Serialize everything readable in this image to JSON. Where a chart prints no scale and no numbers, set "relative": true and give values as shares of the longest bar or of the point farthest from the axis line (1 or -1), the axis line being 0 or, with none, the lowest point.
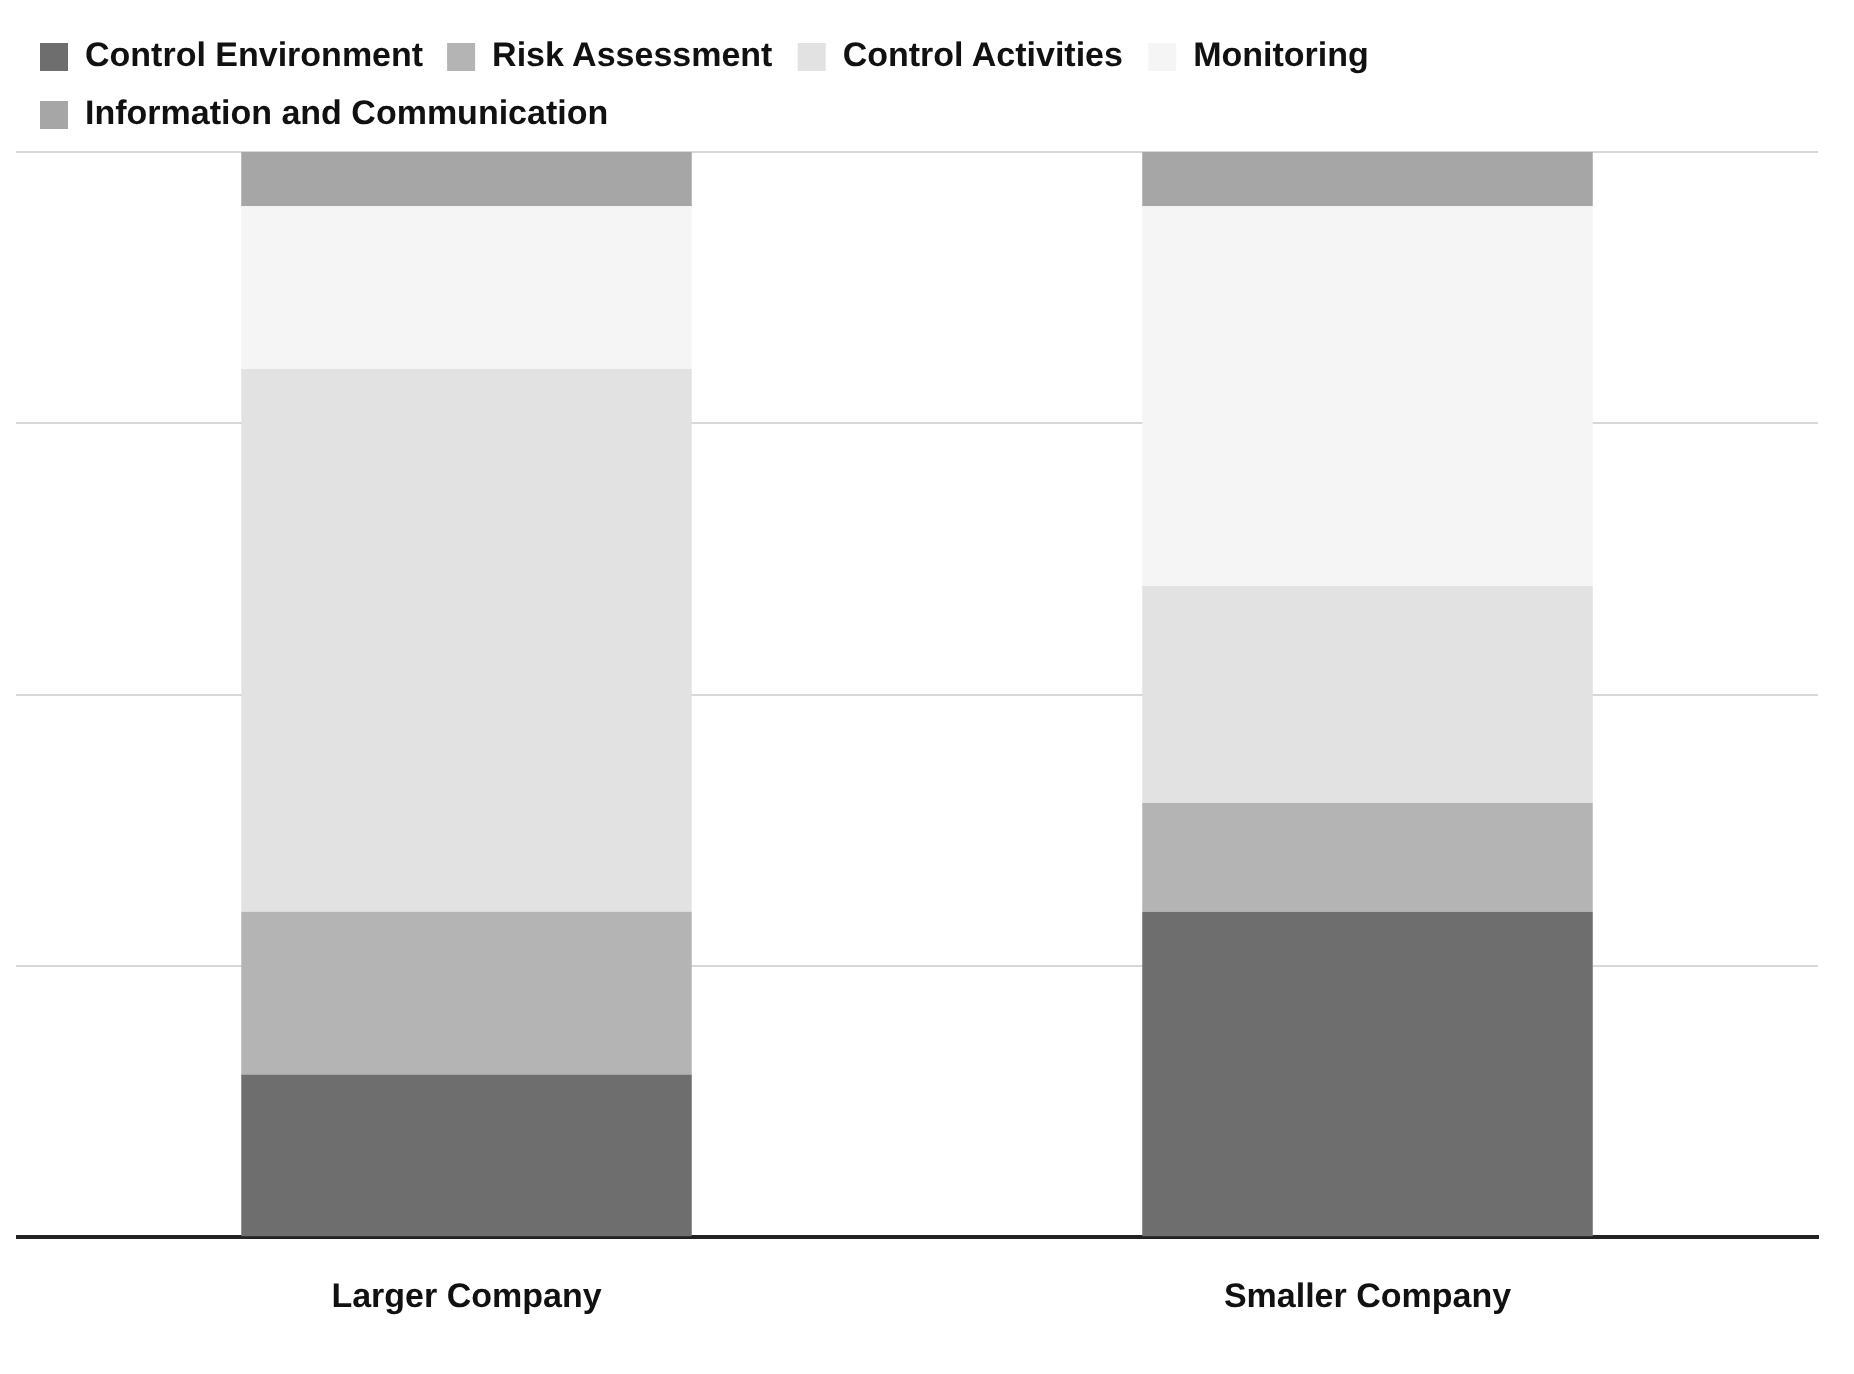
{
  "chart_data": {
    "type": "bar",
    "stacked": true,
    "relative": true,
    "grid": "y",
    "legend": "top left",
    "categories": [
      "Larger Company",
      "Smaller Company"
    ],
    "series": [
      {
        "name": "Control Environment",
        "color": "#6e6e6e",
        "values": [
          0.15,
          0.3
        ]
      },
      {
        "name": "Risk Assessment",
        "color": "#b4b4b4",
        "values": [
          0.15,
          0.1
        ]
      },
      {
        "name": "Control Activities",
        "color": "#e2e2e2",
        "values": [
          0.5,
          0.2
        ]
      },
      {
        "name": "Monitoring",
        "color": "#f5f5f5",
        "values": [
          0.15,
          0.35
        ]
      },
      {
        "name": "Information and Communication",
        "color": "#a6a6a6",
        "values": [
          0.05,
          0.05
        ]
      }
    ]
  }
}
